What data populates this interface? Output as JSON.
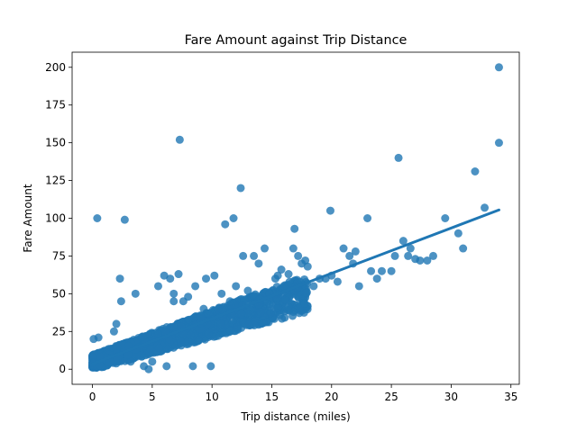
{
  "chart_data": {
    "type": "scatter",
    "title": "Fare Amount against Trip Distance",
    "xlabel": "Trip distance (miles)",
    "ylabel": "Fare Amount",
    "xlim": [
      -1.7,
      35.7
    ],
    "ylim": [
      -10,
      210
    ],
    "xticks": [
      0,
      5,
      10,
      15,
      20,
      25,
      30,
      35
    ],
    "yticks": [
      0,
      25,
      50,
      75,
      100,
      125,
      150,
      175,
      200
    ],
    "grid": false,
    "legend": "none",
    "colors": {
      "points": "#1f77b4",
      "line": "#1f77b4"
    },
    "regression_line": {
      "x": [
        0,
        34
      ],
      "y": [
        3.5,
        105.5
      ]
    },
    "dense_band": {
      "description_free": true,
      "x_range": [
        0,
        18
      ],
      "intercept": 4.5,
      "slope": 2.55,
      "spread": 5
    },
    "points": [
      [
        0.4,
        100
      ],
      [
        2.7,
        99
      ],
      [
        7.3,
        152
      ],
      [
        12.4,
        120
      ],
      [
        11.1,
        96
      ],
      [
        11.8,
        100
      ],
      [
        1.8,
        25
      ],
      [
        2.3,
        60
      ],
      [
        2.4,
        45
      ],
      [
        3.6,
        50
      ],
      [
        4.3,
        2
      ],
      [
        4.7,
        0
      ],
      [
        6.2,
        2
      ],
      [
        8.4,
        2
      ],
      [
        9.9,
        2
      ],
      [
        0.1,
        20
      ],
      [
        0.5,
        21
      ],
      [
        2.0,
        30
      ],
      [
        5.5,
        55
      ],
      [
        6.5,
        60
      ],
      [
        6.0,
        62
      ],
      [
        7.2,
        63
      ],
      [
        6.8,
        50
      ],
      [
        7.6,
        45
      ],
      [
        8.0,
        48
      ],
      [
        9.5,
        60
      ],
      [
        10.2,
        62
      ],
      [
        12.6,
        75
      ],
      [
        13.5,
        75
      ],
      [
        13.9,
        70
      ],
      [
        14.4,
        80
      ],
      [
        15.3,
        60
      ],
      [
        15.8,
        66
      ],
      [
        16.8,
        80
      ],
      [
        17.2,
        75
      ],
      [
        17.8,
        72
      ],
      [
        16.9,
        93
      ],
      [
        19.9,
        105
      ],
      [
        21.0,
        80
      ],
      [
        21.5,
        75
      ],
      [
        22.0,
        78
      ],
      [
        22.3,
        55
      ],
      [
        23.0,
        100
      ],
      [
        23.3,
        65
      ],
      [
        24.2,
        65
      ],
      [
        25.0,
        65
      ],
      [
        25.3,
        75
      ],
      [
        25.6,
        140
      ],
      [
        26.0,
        85
      ],
      [
        26.4,
        75
      ],
      [
        27.4,
        72
      ],
      [
        28.0,
        72
      ],
      [
        26.6,
        80
      ],
      [
        27.0,
        73
      ],
      [
        29.5,
        100
      ],
      [
        30.6,
        90
      ],
      [
        31.0,
        80
      ],
      [
        32.0,
        131
      ],
      [
        32.8,
        107
      ],
      [
        34.0,
        200
      ],
      [
        34.0,
        150
      ],
      [
        28.5,
        75
      ],
      [
        19.0,
        60
      ],
      [
        20.5,
        58
      ],
      [
        18.5,
        55
      ],
      [
        19.5,
        60
      ],
      [
        20.0,
        62
      ],
      [
        16.0,
        55
      ],
      [
        17.5,
        70
      ],
      [
        18.0,
        68
      ],
      [
        14.8,
        50
      ],
      [
        13.0,
        52
      ],
      [
        11.5,
        45
      ],
      [
        12.0,
        55
      ],
      [
        10.8,
        50
      ],
      [
        9.0,
        35
      ],
      [
        9.3,
        40
      ],
      [
        5.0,
        5
      ],
      [
        3.2,
        5
      ],
      [
        6.8,
        45
      ],
      [
        8.6,
        55
      ],
      [
        15.5,
        62
      ],
      [
        16.4,
        63
      ],
      [
        21.8,
        70
      ],
      [
        23.8,
        60
      ]
    ]
  }
}
